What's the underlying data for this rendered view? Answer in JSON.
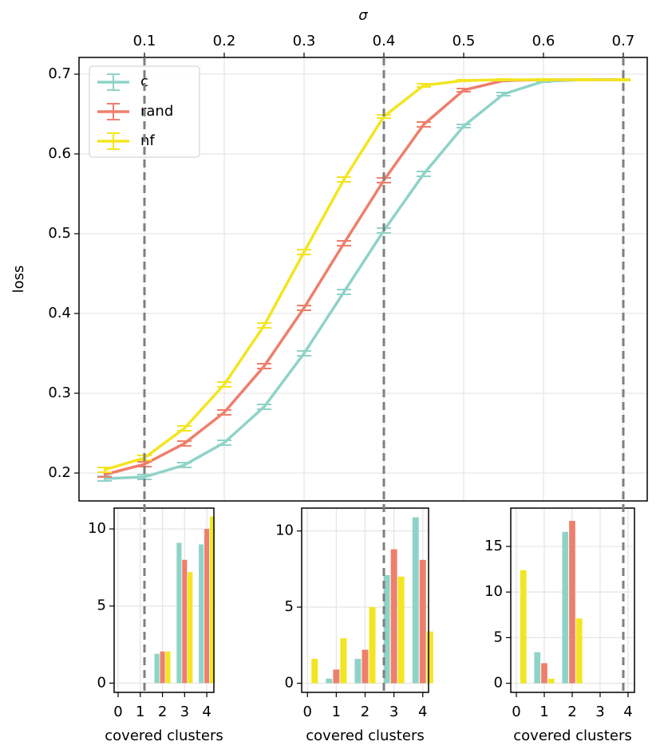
{
  "chart_data": [
    {
      "type": "line",
      "xlabel": "σ",
      "ylabel": "loss",
      "xaxis": "top",
      "x": [
        0.05,
        0.1,
        0.15,
        0.2,
        0.25,
        0.3,
        0.35,
        0.4,
        0.45,
        0.5,
        0.55,
        0.6,
        0.65,
        0.7
      ],
      "series": [
        {
          "name": "c",
          "color": "#8fd3c8",
          "values": [
            0.193,
            0.195,
            0.21,
            0.238,
            0.283,
            0.35,
            0.427,
            0.504,
            0.575,
            0.635,
            0.675,
            0.691,
            0.693,
            0.693
          ],
          "errors": [
            0.003,
            0.003,
            0.003,
            0.003,
            0.003,
            0.003,
            0.003,
            0.003,
            0.003,
            0.002,
            0.002,
            0.001,
            0.001,
            0.001
          ]
        },
        {
          "name": "rand",
          "color": "#ee7f6c",
          "values": [
            0.198,
            0.211,
            0.237,
            0.276,
            0.334,
            0.407,
            0.488,
            0.567,
            0.637,
            0.68,
            0.692,
            0.693,
            0.693,
            0.693
          ],
          "errors": [
            0.003,
            0.003,
            0.003,
            0.003,
            0.003,
            0.003,
            0.003,
            0.003,
            0.003,
            0.002,
            0.001,
            0.001,
            0.001,
            0.001
          ]
        },
        {
          "name": "nf",
          "color": "#f3e520",
          "values": [
            0.204,
            0.219,
            0.256,
            0.311,
            0.385,
            0.477,
            0.568,
            0.647,
            0.686,
            0.692,
            0.693,
            0.693,
            0.693,
            0.693
          ],
          "errors": [
            0.003,
            0.003,
            0.003,
            0.003,
            0.003,
            0.003,
            0.003,
            0.002,
            0.002,
            0.001,
            0.001,
            0.001,
            0.001,
            0.001
          ]
        }
      ],
      "xlim": [
        0.018,
        0.73
      ],
      "ylim": [
        0.165,
        0.721
      ],
      "xticks": [
        0.1,
        0.2,
        0.3,
        0.4,
        0.5,
        0.6,
        0.7
      ],
      "yticks": [
        0.2,
        0.3,
        0.4,
        0.5,
        0.6,
        0.7
      ],
      "grid": true,
      "legend": "upper left",
      "vlines": [
        0.1,
        0.4,
        0.7
      ]
    },
    {
      "type": "bar",
      "xlabel": "covered clusters",
      "x": [
        0,
        1,
        2,
        3,
        4
      ],
      "series": [
        {
          "color": "#8fd3c8",
          "values": [
            0,
            0,
            1.9,
            9.1,
            9.0
          ]
        },
        {
          "color": "#ee7f6c",
          "values": [
            0,
            0,
            2.05,
            8.0,
            10.0
          ]
        },
        {
          "color": "#f3e520",
          "values": [
            0,
            0,
            2.05,
            7.2,
            10.8
          ]
        }
      ],
      "xlim": [
        -0.18,
        4.32
      ],
      "ylim": [
        -0.6,
        11.35
      ],
      "xticks": [
        0,
        1,
        2,
        3,
        4
      ],
      "yticks": [
        0,
        5,
        10
      ],
      "grid": true
    },
    {
      "type": "bar",
      "xlabel": "covered clusters",
      "x": [
        0,
        1,
        2,
        3,
        4
      ],
      "series": [
        {
          "color": "#8fd3c8",
          "values": [
            0,
            0.3,
            1.6,
            7.1,
            10.9
          ]
        },
        {
          "color": "#ee7f6c",
          "values": [
            0,
            0.9,
            2.2,
            8.8,
            8.1
          ]
        },
        {
          "color": "#f3e520",
          "values": [
            1.6,
            2.95,
            5.0,
            7.0,
            3.4
          ]
        }
      ],
      "xlim": [
        -0.2,
        4.2
      ],
      "ylim": [
        -0.6,
        11.5
      ],
      "xticks": [
        0,
        1,
        2,
        3,
        4
      ],
      "yticks": [
        0,
        5,
        10
      ],
      "grid": true
    },
    {
      "type": "bar",
      "xlabel": "covered clusters",
      "x": [
        0,
        1,
        2,
        3,
        4
      ],
      "series": [
        {
          "color": "#8fd3c8",
          "values": [
            0,
            3.4,
            16.6,
            0,
            0
          ]
        },
        {
          "color": "#ee7f6c",
          "values": [
            0,
            2.2,
            17.8,
            0,
            0
          ]
        },
        {
          "color": "#f3e520",
          "values": [
            12.4,
            0.5,
            7.1,
            0,
            0
          ]
        }
      ],
      "xlim": [
        -0.2,
        4.23
      ],
      "ylim": [
        -1.0,
        19.2
      ],
      "xticks": [
        0,
        1,
        2,
        3,
        4
      ],
      "yticks": [
        0,
        5,
        10,
        15
      ],
      "grid": true
    }
  ]
}
